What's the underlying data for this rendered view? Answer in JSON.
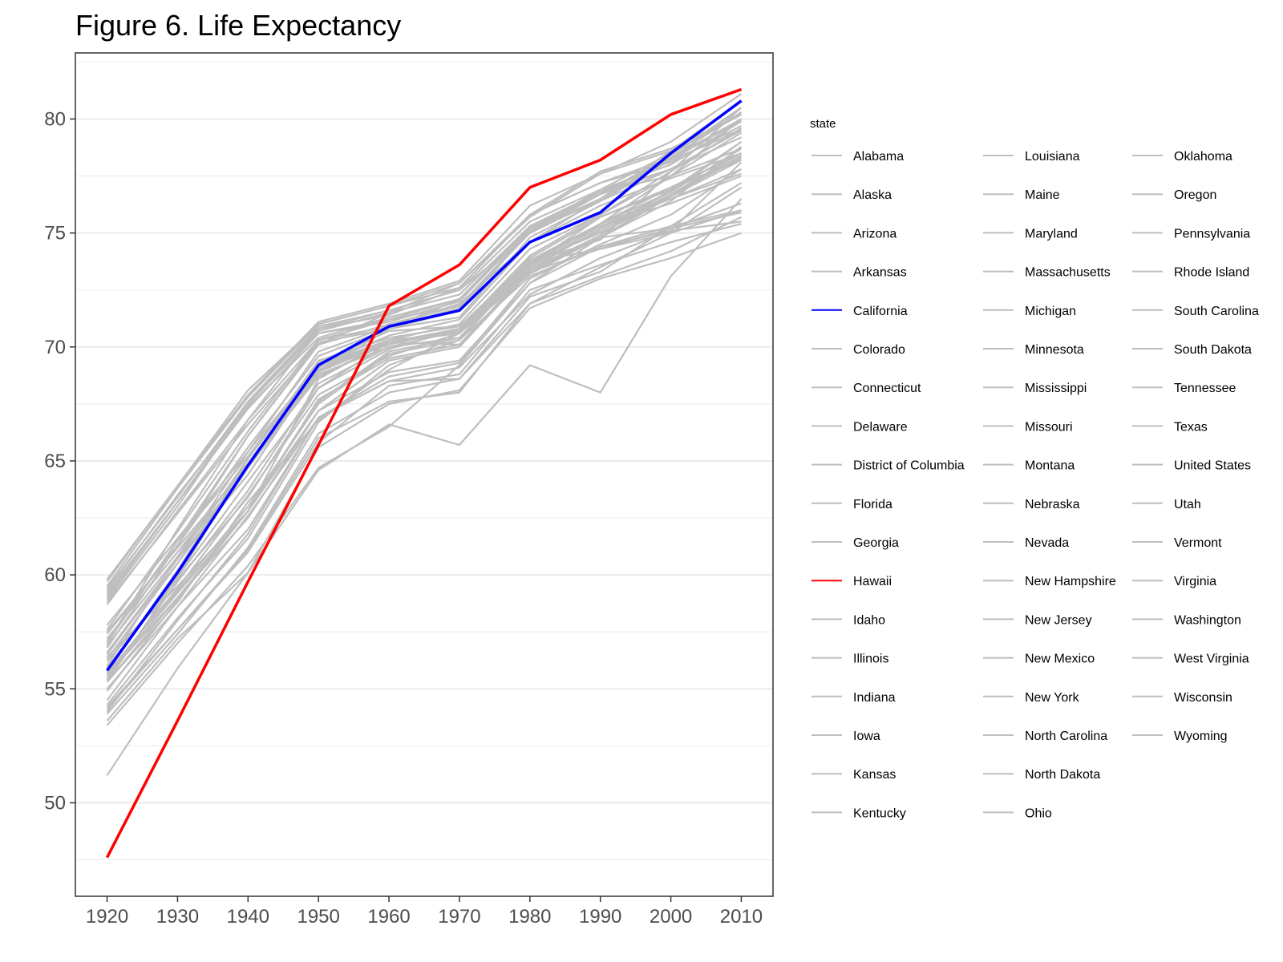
{
  "chart_data": {
    "type": "line",
    "title": "Figure 6. Life Expectancy",
    "xlabel": "",
    "ylabel": "",
    "x": [
      1920,
      1930,
      1940,
      1950,
      1960,
      1970,
      1980,
      1990,
      2000,
      2010
    ],
    "xlim": [
      1915.5,
      2014.5
    ],
    "ylim": [
      45.9,
      82.9
    ],
    "y_ticks": [
      50,
      55,
      60,
      65,
      70,
      75,
      80
    ],
    "x_ticks": [
      1920,
      1930,
      1940,
      1950,
      1960,
      1970,
      1980,
      1990,
      2000,
      2010
    ],
    "grid": true,
    "legend": {
      "title": "state",
      "position": "right"
    },
    "colors": {
      "default": "#bebebe",
      "California": "#0000ff",
      "Hawaii": "#ff0000",
      "grid": "#ebebeb",
      "frame": "#333333"
    },
    "series": [
      {
        "name": "Alabama",
        "values": [
          54.2,
          57.6,
          61.0,
          65.8,
          68.3,
          68.8,
          72.5,
          73.6,
          74.6,
          75.4
        ]
      },
      {
        "name": "Alaska",
        "values": [
          53.4,
          57.0,
          60.4,
          64.7,
          66.5,
          69.2,
          72.8,
          74.8,
          76.7,
          78.3
        ]
      },
      {
        "name": "Arizona",
        "values": [
          54.9,
          58.9,
          62.8,
          68.6,
          70.3,
          71.0,
          74.3,
          75.8,
          77.7,
          79.6
        ]
      },
      {
        "name": "Arkansas",
        "values": [
          55.3,
          58.8,
          63.2,
          66.8,
          69.0,
          70.6,
          73.7,
          74.3,
          75.0,
          76.0
        ]
      },
      {
        "name": "California",
        "values": [
          55.8,
          60.1,
          64.8,
          69.2,
          70.9,
          71.6,
          74.6,
          75.9,
          78.5,
          80.8
        ]
      },
      {
        "name": "Colorado",
        "values": [
          57.2,
          61.0,
          64.9,
          68.9,
          70.8,
          72.1,
          75.1,
          76.4,
          78.2,
          80.0
        ]
      },
      {
        "name": "Connecticut",
        "values": [
          57.0,
          62.0,
          66.8,
          70.8,
          71.6,
          72.5,
          75.0,
          76.5,
          78.6,
          80.8
        ]
      },
      {
        "name": "Delaware",
        "values": [
          56.6,
          60.5,
          64.8,
          69.1,
          70.3,
          70.6,
          73.2,
          74.8,
          76.6,
          78.4
        ]
      },
      {
        "name": "District of Columbia",
        "values": [
          51.2,
          55.9,
          60.1,
          64.6,
          66.6,
          65.7,
          69.2,
          68.0,
          73.1,
          76.5
        ]
      },
      {
        "name": "Florida",
        "values": [
          56.2,
          59.8,
          63.4,
          68.2,
          70.2,
          70.8,
          74.0,
          75.8,
          77.5,
          79.4
        ]
      },
      {
        "name": "Georgia",
        "values": [
          54.0,
          58.0,
          61.8,
          66.9,
          68.5,
          68.6,
          72.2,
          73.3,
          75.3,
          77.2
        ]
      },
      {
        "name": "Hawaii",
        "values": [
          47.6,
          53.6,
          59.7,
          65.7,
          71.8,
          73.6,
          77.0,
          78.2,
          80.2,
          81.3
        ]
      },
      {
        "name": "Idaho",
        "values": [
          59.2,
          63.2,
          67.3,
          70.6,
          71.1,
          72.0,
          75.2,
          76.8,
          78.2,
          79.5
        ]
      },
      {
        "name": "Illinois",
        "values": [
          56.6,
          60.7,
          64.4,
          69.0,
          70.2,
          70.1,
          73.4,
          74.9,
          76.9,
          79.0
        ]
      },
      {
        "name": "Indiana",
        "values": [
          57.0,
          61.5,
          65.2,
          69.3,
          70.7,
          70.9,
          73.8,
          75.4,
          76.5,
          77.6
        ]
      },
      {
        "name": "Iowa",
        "values": [
          59.5,
          63.8,
          67.8,
          71.0,
          71.8,
          72.6,
          75.8,
          77.2,
          78.1,
          79.7
        ]
      },
      {
        "name": "Kansas",
        "values": [
          59.0,
          63.2,
          67.5,
          70.7,
          71.5,
          72.3,
          75.3,
          76.8,
          77.5,
          78.7
        ]
      },
      {
        "name": "Kentucky",
        "values": [
          55.5,
          59.3,
          63.0,
          67.5,
          69.7,
          70.3,
          73.1,
          74.4,
          75.3,
          76.0
        ]
      },
      {
        "name": "Louisiana",
        "values": [
          53.9,
          57.4,
          61.2,
          66.2,
          68.0,
          68.6,
          71.9,
          73.1,
          74.2,
          75.7
        ]
      },
      {
        "name": "Maine",
        "values": [
          57.4,
          61.3,
          65.6,
          69.6,
          70.8,
          71.3,
          74.8,
          76.4,
          77.8,
          79.2
        ]
      },
      {
        "name": "Maryland",
        "values": [
          55.7,
          59.4,
          63.5,
          67.9,
          69.6,
          70.6,
          73.3,
          74.8,
          76.4,
          78.8
        ]
      },
      {
        "name": "Massachusetts",
        "values": [
          56.8,
          61.3,
          66.1,
          70.1,
          71.0,
          71.8,
          75.0,
          76.7,
          78.4,
          80.5
        ]
      },
      {
        "name": "Michigan",
        "values": [
          56.5,
          60.7,
          65.1,
          69.2,
          70.3,
          70.6,
          73.7,
          75.0,
          76.6,
          78.2
        ]
      },
      {
        "name": "Minnesota",
        "values": [
          59.8,
          63.9,
          67.9,
          71.1,
          71.9,
          72.9,
          76.2,
          77.6,
          79.0,
          81.1
        ]
      },
      {
        "name": "Mississippi",
        "values": [
          53.6,
          57.2,
          60.1,
          65.6,
          67.5,
          68.1,
          71.7,
          73.0,
          73.9,
          75.0
        ]
      },
      {
        "name": "Missouri",
        "values": [
          56.9,
          60.8,
          64.7,
          68.9,
          70.2,
          70.7,
          73.8,
          75.3,
          76.3,
          77.5
        ]
      },
      {
        "name": "Montana",
        "values": [
          57.8,
          61.6,
          65.4,
          69.2,
          70.5,
          71.2,
          74.6,
          76.2,
          77.4,
          78.5
        ]
      },
      {
        "name": "Nebraska",
        "values": [
          59.4,
          63.4,
          67.6,
          70.9,
          71.6,
          72.5,
          75.5,
          76.9,
          78.0,
          79.9
        ]
      },
      {
        "name": "Nevada",
        "values": [
          54.5,
          58.6,
          62.0,
          66.9,
          68.5,
          69.1,
          72.3,
          73.9,
          75.1,
          78.1
        ]
      },
      {
        "name": "New Hampshire",
        "values": [
          57.6,
          61.9,
          66.3,
          70.3,
          70.9,
          71.7,
          75.1,
          76.7,
          78.3,
          80.3
        ]
      },
      {
        "name": "New Jersey",
        "values": [
          55.8,
          60.2,
          65.1,
          69.4,
          70.4,
          70.9,
          73.7,
          75.4,
          77.5,
          80.0
        ]
      },
      {
        "name": "New Mexico",
        "values": [
          54.3,
          58.1,
          61.6,
          66.7,
          69.2,
          70.3,
          73.6,
          75.7,
          76.9,
          78.3
        ]
      },
      {
        "name": "New York",
        "values": [
          55.3,
          59.9,
          64.9,
          69.1,
          70.2,
          70.6,
          73.7,
          74.7,
          77.7,
          80.5
        ]
      },
      {
        "name": "North Carolina",
        "values": [
          55.0,
          58.6,
          62.6,
          66.9,
          68.7,
          69.3,
          73.0,
          74.5,
          75.8,
          77.8
        ]
      },
      {
        "name": "North Dakota",
        "values": [
          59.7,
          63.9,
          68.1,
          71.0,
          71.8,
          72.8,
          75.7,
          77.6,
          78.6,
          79.5
        ]
      },
      {
        "name": "Ohio",
        "values": [
          56.3,
          60.5,
          64.8,
          69.0,
          70.1,
          70.8,
          73.5,
          75.3,
          76.5,
          77.8
        ]
      },
      {
        "name": "Oklahoma",
        "values": [
          55.4,
          59.7,
          63.7,
          68.4,
          70.0,
          70.7,
          73.4,
          74.8,
          75.2,
          75.9
        ]
      },
      {
        "name": "Oregon",
        "values": [
          59.3,
          63.5,
          67.4,
          70.4,
          71.3,
          72.1,
          75.2,
          76.7,
          77.8,
          79.5
        ]
      },
      {
        "name": "Pennsylvania",
        "values": [
          55.9,
          60.1,
          64.7,
          68.8,
          70.0,
          70.4,
          73.6,
          75.4,
          77.0,
          78.5
        ]
      },
      {
        "name": "Rhode Island",
        "values": [
          56.0,
          60.8,
          65.4,
          69.8,
          70.9,
          71.9,
          74.6,
          76.5,
          78.3,
          79.9
        ]
      },
      {
        "name": "South Carolina",
        "values": [
          54.1,
          57.6,
          61.1,
          66.0,
          67.6,
          68.0,
          71.9,
          73.5,
          75.0,
          77.0
        ]
      },
      {
        "name": "South Dakota",
        "values": [
          59.1,
          63.2,
          67.3,
          70.6,
          71.2,
          72.1,
          75.3,
          76.8,
          77.8,
          79.5
        ]
      },
      {
        "name": "Tennessee",
        "values": [
          55.6,
          59.0,
          62.5,
          67.2,
          69.4,
          70.0,
          73.3,
          74.3,
          75.2,
          76.3
        ]
      },
      {
        "name": "Texas",
        "values": [
          55.3,
          59.0,
          62.8,
          67.6,
          69.8,
          70.4,
          73.6,
          75.1,
          76.7,
          78.5
        ]
      },
      {
        "name": "United States",
        "values": [
          55.9,
          59.9,
          64.1,
          68.2,
          69.9,
          70.8,
          73.7,
          75.4,
          76.8,
          78.7
        ]
      },
      {
        "name": "Utah",
        "values": [
          58.8,
          62.7,
          66.6,
          70.1,
          71.5,
          72.8,
          75.8,
          77.7,
          78.7,
          80.2
        ]
      },
      {
        "name": "Vermont",
        "values": [
          57.1,
          61.5,
          66.1,
          70.2,
          70.8,
          71.6,
          75.1,
          76.5,
          78.2,
          80.5
        ]
      },
      {
        "name": "Virginia",
        "values": [
          55.6,
          59.2,
          62.8,
          67.7,
          69.5,
          70.1,
          73.4,
          75.2,
          76.8,
          79.0
        ]
      },
      {
        "name": "Washington",
        "values": [
          58.7,
          62.8,
          66.8,
          70.3,
          71.2,
          71.8,
          75.1,
          76.9,
          78.5,
          80.2
        ]
      },
      {
        "name": "West Virginia",
        "values": [
          56.4,
          59.5,
          62.8,
          67.2,
          68.9,
          69.4,
          72.8,
          74.4,
          75.1,
          75.5
        ]
      },
      {
        "name": "Wisconsin",
        "values": [
          58.9,
          63.0,
          67.5,
          70.8,
          71.4,
          72.6,
          75.8,
          77.2,
          78.3,
          80.0
        ]
      },
      {
        "name": "Wyoming",
        "values": [
          57.5,
          61.2,
          64.8,
          68.7,
          70.2,
          70.7,
          73.9,
          75.7,
          77.0,
          78.2
        ]
      }
    ]
  }
}
